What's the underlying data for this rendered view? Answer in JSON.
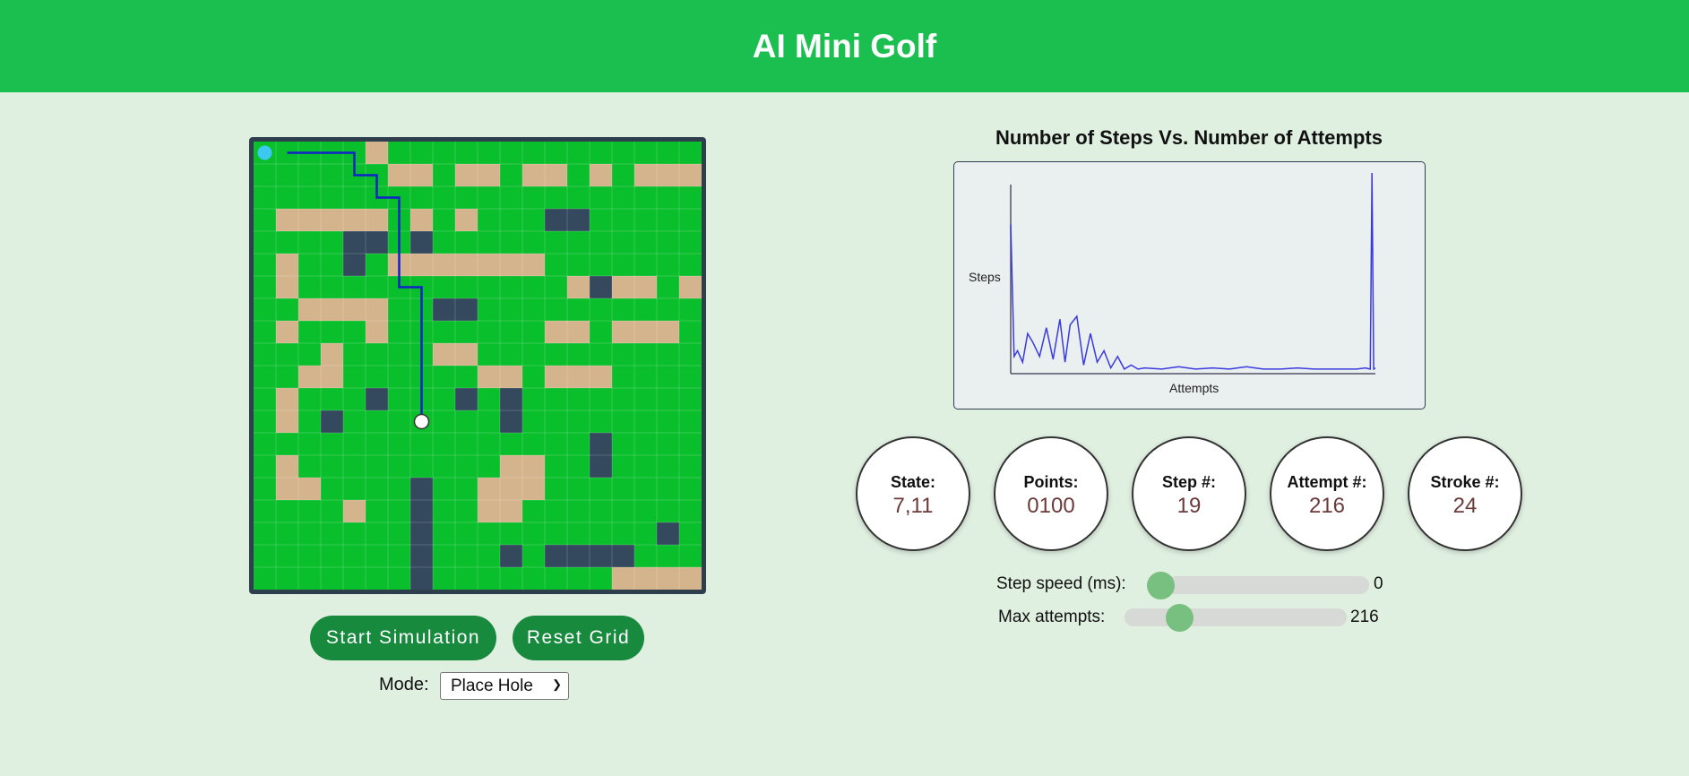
{
  "app": {
    "title": "AI Mini Golf"
  },
  "controls": {
    "start_label": "Start Simulation",
    "reset_label": "Reset Grid",
    "mode_label": "Mode:",
    "mode_selected": "Place Hole"
  },
  "chart_data": {
    "type": "line",
    "title": "Number of Steps Vs. Number of Attempts",
    "xlabel": "Attempts",
    "ylabel": "Steps",
    "x": [
      1,
      3,
      5,
      8,
      11,
      14,
      18,
      22,
      26,
      30,
      33,
      36,
      40,
      44,
      48,
      52,
      56,
      60,
      64,
      68,
      72,
      76,
      80,
      90,
      100,
      110,
      120,
      130,
      140,
      150,
      160,
      170,
      180,
      190,
      200,
      205,
      210,
      213,
      214,
      215,
      216
    ],
    "values": [
      260,
      30,
      40,
      20,
      70,
      55,
      30,
      80,
      25,
      95,
      20,
      85,
      100,
      15,
      70,
      20,
      40,
      10,
      30,
      8,
      15,
      8,
      10,
      8,
      12,
      8,
      10,
      8,
      12,
      8,
      8,
      10,
      8,
      8,
      8,
      8,
      10,
      8,
      350,
      8,
      10
    ],
    "grid": false,
    "legend": "none"
  },
  "stats": [
    {
      "label": "State:",
      "value": "7,11"
    },
    {
      "label": "Points:",
      "value": "0100"
    },
    {
      "label": "Step #:",
      "value": "19"
    },
    {
      "label": "Attempt #:",
      "value": "216"
    },
    {
      "label": "Stroke #:",
      "value": "24"
    }
  ],
  "sliders": {
    "step_speed": {
      "label": "Step speed (ms):",
      "value": "0",
      "fraction": 0.0
    },
    "max_attempts": {
      "label": "Max attempts:",
      "value": "216",
      "fraction": 0.21
    }
  },
  "grid": {
    "cols": 20,
    "rows": 20,
    "colors": {
      "grass": "#0abf2c",
      "sand": "#d4b48c",
      "wall": "#34495e",
      "path": "#1022c8",
      "start": "#3cc8f0",
      "hole": "#ffffff"
    },
    "sand": [
      [
        5,
        0
      ],
      [
        6,
        1
      ],
      [
        7,
        1
      ],
      [
        9,
        1
      ],
      [
        10,
        1
      ],
      [
        12,
        1
      ],
      [
        13,
        1
      ],
      [
        15,
        1
      ],
      [
        17,
        1
      ],
      [
        18,
        1
      ],
      [
        19,
        1
      ],
      [
        1,
        3
      ],
      [
        2,
        3
      ],
      [
        3,
        3
      ],
      [
        4,
        3
      ],
      [
        5,
        3
      ],
      [
        7,
        3
      ],
      [
        9,
        3
      ],
      [
        6,
        5
      ],
      [
        7,
        5
      ],
      [
        8,
        5
      ],
      [
        9,
        5
      ],
      [
        10,
        5
      ],
      [
        11,
        5
      ],
      [
        12,
        5
      ],
      [
        1,
        5
      ],
      [
        1,
        6
      ],
      [
        14,
        6
      ],
      [
        16,
        6
      ],
      [
        17,
        6
      ],
      [
        19,
        6
      ],
      [
        2,
        7
      ],
      [
        3,
        7
      ],
      [
        4,
        7
      ],
      [
        5,
        7
      ],
      [
        1,
        8
      ],
      [
        5,
        8
      ],
      [
        13,
        8
      ],
      [
        14,
        8
      ],
      [
        16,
        8
      ],
      [
        17,
        8
      ],
      [
        18,
        8
      ],
      [
        3,
        9
      ],
      [
        8,
        9
      ],
      [
        9,
        9
      ],
      [
        2,
        10
      ],
      [
        3,
        10
      ],
      [
        10,
        10
      ],
      [
        11,
        10
      ],
      [
        13,
        10
      ],
      [
        14,
        10
      ],
      [
        15,
        10
      ],
      [
        1,
        11
      ],
      [
        1,
        12
      ],
      [
        1,
        14
      ],
      [
        11,
        14
      ],
      [
        12,
        14
      ],
      [
        1,
        15
      ],
      [
        2,
        15
      ],
      [
        10,
        15
      ],
      [
        11,
        15
      ],
      [
        12,
        15
      ],
      [
        10,
        16
      ],
      [
        11,
        16
      ],
      [
        4,
        16
      ],
      [
        16,
        19
      ],
      [
        17,
        19
      ],
      [
        18,
        19
      ],
      [
        19,
        19
      ]
    ],
    "walls": [
      [
        13,
        3
      ],
      [
        14,
        3
      ],
      [
        7,
        4
      ],
      [
        4,
        4
      ],
      [
        5,
        4
      ],
      [
        4,
        5
      ],
      [
        15,
        6
      ],
      [
        8,
        7
      ],
      [
        9,
        7
      ],
      [
        5,
        11
      ],
      [
        9,
        11
      ],
      [
        11,
        11
      ],
      [
        11,
        12
      ],
      [
        3,
        12
      ],
      [
        15,
        13
      ],
      [
        15,
        14
      ],
      [
        7,
        15
      ],
      [
        7,
        16
      ],
      [
        7,
        17
      ],
      [
        18,
        17
      ],
      [
        7,
        18
      ],
      [
        11,
        18
      ],
      [
        13,
        18
      ],
      [
        14,
        18
      ],
      [
        15,
        18
      ],
      [
        16,
        18
      ],
      [
        7,
        19
      ]
    ],
    "path": [
      [
        1,
        0
      ],
      [
        4,
        0
      ],
      [
        4,
        1
      ],
      [
        5,
        1
      ],
      [
        5,
        2
      ],
      [
        6,
        2
      ],
      [
        6,
        6
      ],
      [
        7,
        6
      ],
      [
        7,
        12
      ]
    ],
    "start": [
      0,
      0
    ],
    "hole": [
      7,
      12
    ]
  }
}
